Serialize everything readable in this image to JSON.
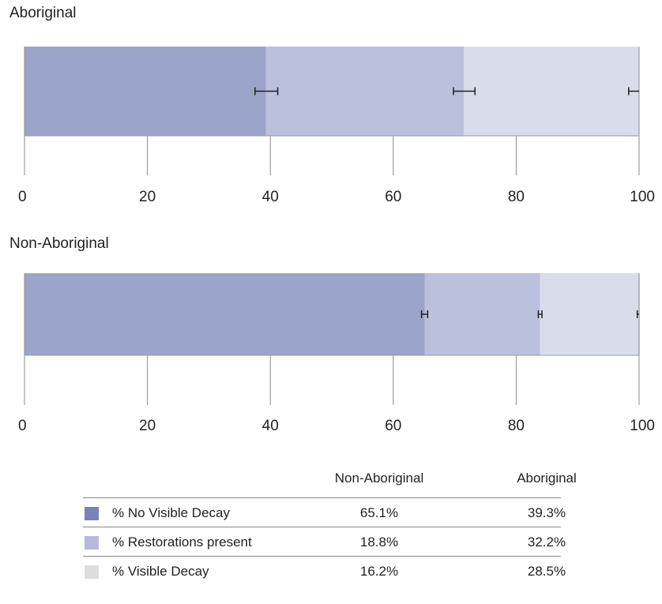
{
  "chart_data": [
    {
      "type": "bar",
      "orientation": "horizontal",
      "stacked": true,
      "title": "Aboriginal",
      "xlim": [
        0,
        100
      ],
      "xticks": [
        0,
        20,
        40,
        60,
        80,
        100
      ],
      "grid": true,
      "series": [
        {
          "name": "% No Visible Decay",
          "value": 39.3,
          "error_low": 37.5,
          "error_high": 41.2,
          "color": "#9aa5c9"
        },
        {
          "name": "% Restorations present",
          "value": 32.2,
          "error_low": 69.8,
          "error_high": 73.3,
          "color": "#bbc0dd"
        },
        {
          "name": "% Visible Decay",
          "value": 28.5,
          "error_low": 98.3,
          "error_high": 100,
          "color": "#d9dceb"
        }
      ]
    },
    {
      "type": "bar",
      "orientation": "horizontal",
      "stacked": true,
      "title": "Non-Aboriginal",
      "xlim": [
        0,
        100
      ],
      "xticks": [
        0,
        20,
        40,
        60,
        80,
        100
      ],
      "grid": true,
      "series": [
        {
          "name": "% No Visible Decay",
          "value": 65.1,
          "error_low": 64.6,
          "error_high": 65.6,
          "color": "#9aa5c9"
        },
        {
          "name": "% Restorations present",
          "value": 18.8,
          "error_low": 83.6,
          "error_high": 84.2,
          "color": "#bbc0dd"
        },
        {
          "name": "% Visible Decay",
          "value": 16.2,
          "error_low": 99.7,
          "error_high": 100,
          "color": "#d9dceb"
        }
      ]
    }
  ],
  "legend_table": {
    "columns": [
      "Non-Aboriginal",
      "Aboriginal"
    ],
    "rows": [
      {
        "label": "% No Visible Decay",
        "non_aboriginal": "65.1%",
        "aboriginal": "39.3%",
        "swatch_color": "#7c82b2"
      },
      {
        "label": "% Restorations present",
        "non_aboriginal": "18.8%",
        "aboriginal": "32.2%",
        "swatch_color": "#b7b8da"
      },
      {
        "label": "% Visible Decay",
        "non_aboriginal": "16.2%",
        "aboriginal": "28.5%",
        "swatch_color": "#dcdcdc"
      }
    ]
  }
}
